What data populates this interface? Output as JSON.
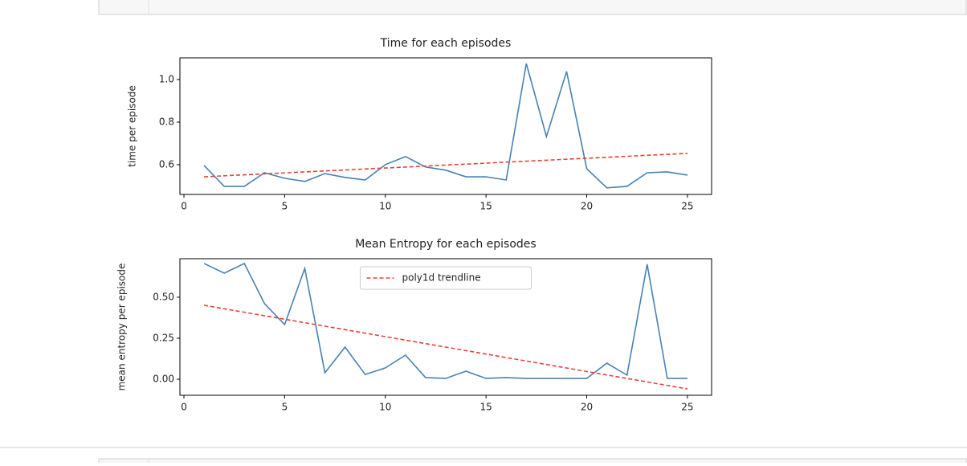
{
  "chart_data": [
    {
      "type": "line",
      "title": "Time for each episodes",
      "ylabel": "time per episode",
      "xlim": [
        -0.2,
        26.2
      ],
      "xticks": [
        0,
        5,
        10,
        15,
        20,
        25
      ],
      "ylim": [
        0.46,
        1.102
      ],
      "yticks": [
        0.6,
        0.8,
        {
          "value": 1,
          "label": "1.0"
        }
      ],
      "series": [
        {
          "color": "#4682b4",
          "style": "solid",
          "x": [
            1,
            2,
            3,
            4,
            5,
            6,
            7,
            8,
            9,
            10,
            11,
            12,
            13,
            14,
            15,
            16,
            17,
            18,
            19,
            20,
            21,
            22,
            23,
            24,
            25
          ],
          "values": [
            0.596,
            0.498,
            0.498,
            0.562,
            0.536,
            0.521,
            0.558,
            0.54,
            0.528,
            0.6,
            0.638,
            0.589,
            0.574,
            0.543,
            0.543,
            0.528,
            1.075,
            0.732,
            1.038,
            0.581,
            0.491,
            0.498,
            0.562,
            0.566,
            0.551
          ]
        },
        {
          "color": "#e8413a",
          "style": "dashed",
          "x": [
            1,
            25
          ],
          "values": [
            0.543,
            0.653
          ]
        }
      ]
    },
    {
      "type": "line",
      "title": "Mean Entropy for each episodes",
      "ylabel": "mean entropy per episode",
      "xlim": [
        -0.2,
        26.2
      ],
      "xticks": [
        0,
        5,
        10,
        15,
        20,
        25
      ],
      "ylim": [
        -0.098,
        0.735
      ],
      "yticks": [
        {
          "value": 0,
          "label": "0.00"
        },
        0.25,
        {
          "value": 0.5,
          "label": "0.50"
        }
      ],
      "legend": "upper center",
      "series": [
        {
          "color": "#4682b4",
          "style": "solid",
          "x": [
            1,
            2,
            3,
            4,
            5,
            6,
            7,
            8,
            9,
            10,
            11,
            12,
            13,
            14,
            15,
            16,
            17,
            18,
            19,
            20,
            21,
            22,
            23,
            24,
            25
          ],
          "values": [
            0.706,
            0.647,
            0.706,
            0.461,
            0.333,
            0.676,
            0.039,
            0.196,
            0.029,
            0.069,
            0.147,
            0.01,
            0.005,
            0.049,
            0.005,
            0.01,
            0.005,
            0.005,
            0.005,
            0.005,
            0.098,
            0.025,
            0.701,
            0.005,
            0.005
          ]
        },
        {
          "name": "poly1d trendline",
          "color": "#e8413a",
          "style": "dashed",
          "x": [
            1,
            25
          ],
          "values": [
            0.451,
            -0.059
          ]
        }
      ]
    }
  ]
}
